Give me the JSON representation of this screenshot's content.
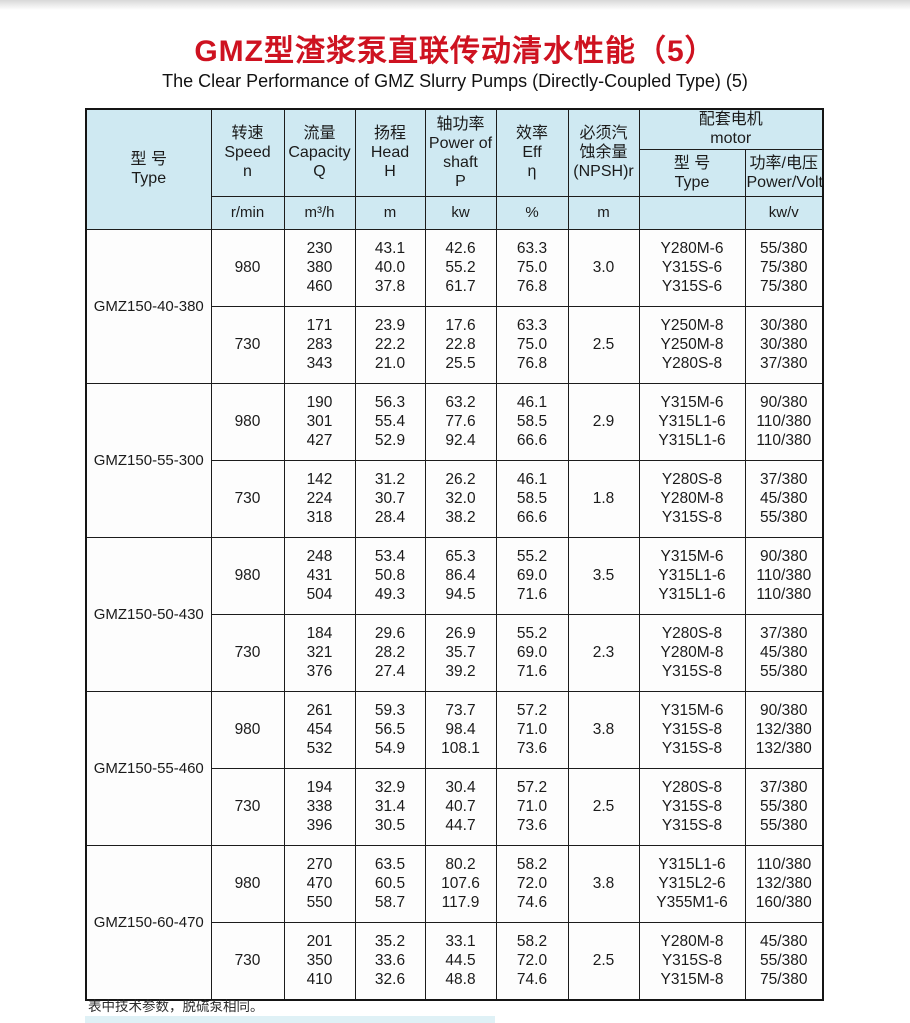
{
  "page": {
    "title": "GMZ型渣浆泵直联传动清水性能（5）",
    "subtitle": "The Clear Performance of GMZ Slurry Pumps (Directly-Coupled Type) (5)",
    "note": "表中技术参数，脱硫泵相同。",
    "colors": {
      "title_red": "#ce1220",
      "header_bg": "#cfe9f2",
      "border": "#1c1c1c"
    }
  },
  "table": {
    "headers": {
      "model": {
        "zh": "型  号",
        "en": "Type"
      },
      "speed": {
        "zh": "转速",
        "en": "Speed",
        "sym": "n"
      },
      "capacity": {
        "zh": "流量",
        "en": "Capacity",
        "sym": "Q"
      },
      "head": {
        "zh": "扬程",
        "en": "Head",
        "sym": "H"
      },
      "shaft_power": {
        "zh": "轴功率",
        "en": "Power of\nshaft",
        "sym": "P"
      },
      "eff": {
        "zh": "效率",
        "en": "Eff",
        "sym": "η"
      },
      "npsh": {
        "zh1": "必须汽",
        "zh2": "蚀余量",
        "sym": "(NPSH)r"
      },
      "motor_group": {
        "zh": "配套电机",
        "en": "motor"
      },
      "motor_model": {
        "zh": "型  号",
        "en": "Type"
      },
      "motor_power": {
        "zh": "功率/电压",
        "en": "Power/Voltage"
      }
    },
    "units": {
      "speed": "r/min",
      "capacity": "m³/h",
      "head": "m",
      "shaft_power": "kw",
      "eff": "%",
      "npsh": "m",
      "motor_model": "",
      "motor_power": "kw/v"
    },
    "models": [
      {
        "name": "GMZ150-40-380",
        "speeds": [
          {
            "rpm": "980",
            "capacity": [
              "230",
              "380",
              "460"
            ],
            "head": [
              "43.1",
              "40.0",
              "37.8"
            ],
            "shaft_power": [
              "42.6",
              "55.2",
              "61.7"
            ],
            "eff": [
              "63.3",
              "75.0",
              "76.8"
            ],
            "npsh": "3.0",
            "motors": [
              "Y280M-6",
              "Y315S-6",
              "Y315S-6"
            ],
            "power_voltage": [
              "55/380",
              "75/380",
              "75/380"
            ]
          },
          {
            "rpm": "730",
            "capacity": [
              "171",
              "283",
              "343"
            ],
            "head": [
              "23.9",
              "22.2",
              "21.0"
            ],
            "shaft_power": [
              "17.6",
              "22.8",
              "25.5"
            ],
            "eff": [
              "63.3",
              "75.0",
              "76.8"
            ],
            "npsh": "2.5",
            "motors": [
              "Y250M-8",
              "Y250M-8",
              "Y280S-8"
            ],
            "power_voltage": [
              "30/380",
              "30/380",
              "37/380"
            ]
          }
        ]
      },
      {
        "name": "GMZ150-55-300",
        "speeds": [
          {
            "rpm": "980",
            "capacity": [
              "190",
              "301",
              "427"
            ],
            "head": [
              "56.3",
              "55.4",
              "52.9"
            ],
            "shaft_power": [
              "63.2",
              "77.6",
              "92.4"
            ],
            "eff": [
              "46.1",
              "58.5",
              "66.6"
            ],
            "npsh": "2.9",
            "motors": [
              "Y315M-6",
              "Y315L1-6",
              "Y315L1-6"
            ],
            "power_voltage": [
              "90/380",
              "110/380",
              "110/380"
            ]
          },
          {
            "rpm": "730",
            "capacity": [
              "142",
              "224",
              "318"
            ],
            "head": [
              "31.2",
              "30.7",
              "28.4"
            ],
            "shaft_power": [
              "26.2",
              "32.0",
              "38.2"
            ],
            "eff": [
              "46.1",
              "58.5",
              "66.6"
            ],
            "npsh": "1.8",
            "motors": [
              "Y280S-8",
              "Y280M-8",
              "Y315S-8"
            ],
            "power_voltage": [
              "37/380",
              "45/380",
              "55/380"
            ]
          }
        ]
      },
      {
        "name": "GMZ150-50-430",
        "speeds": [
          {
            "rpm": "980",
            "capacity": [
              "248",
              "431",
              "504"
            ],
            "head": [
              "53.4",
              "50.8",
              "49.3"
            ],
            "shaft_power": [
              "65.3",
              "86.4",
              "94.5"
            ],
            "eff": [
              "55.2",
              "69.0",
              "71.6"
            ],
            "npsh": "3.5",
            "motors": [
              "Y315M-6",
              "Y315L1-6",
              "Y315L1-6"
            ],
            "power_voltage": [
              "90/380",
              "110/380",
              "110/380"
            ]
          },
          {
            "rpm": "730",
            "capacity": [
              "184",
              "321",
              "376"
            ],
            "head": [
              "29.6",
              "28.2",
              "27.4"
            ],
            "shaft_power": [
              "26.9",
              "35.7",
              "39.2"
            ],
            "eff": [
              "55.2",
              "69.0",
              "71.6"
            ],
            "npsh": "2.3",
            "motors": [
              "Y280S-8",
              "Y280M-8",
              "Y315S-8"
            ],
            "power_voltage": [
              "37/380",
              "45/380",
              "55/380"
            ]
          }
        ]
      },
      {
        "name": "GMZ150-55-460",
        "speeds": [
          {
            "rpm": "980",
            "capacity": [
              "261",
              "454",
              "532"
            ],
            "head": [
              "59.3",
              "56.5",
              "54.9"
            ],
            "shaft_power": [
              "73.7",
              "98.4",
              "108.1"
            ],
            "eff": [
              "57.2",
              "71.0",
              "73.6"
            ],
            "npsh": "3.8",
            "motors": [
              "Y315M-6",
              "Y315S-8",
              "Y315S-8"
            ],
            "power_voltage": [
              "90/380",
              "132/380",
              "132/380"
            ]
          },
          {
            "rpm": "730",
            "capacity": [
              "194",
              "338",
              "396"
            ],
            "head": [
              "32.9",
              "31.4",
              "30.5"
            ],
            "shaft_power": [
              "30.4",
              "40.7",
              "44.7"
            ],
            "eff": [
              "57.2",
              "71.0",
              "73.6"
            ],
            "npsh": "2.5",
            "motors": [
              "Y280S-8",
              "Y315S-8",
              "Y315S-8"
            ],
            "power_voltage": [
              "37/380",
              "55/380",
              "55/380"
            ]
          }
        ]
      },
      {
        "name": "GMZ150-60-470",
        "speeds": [
          {
            "rpm": "980",
            "capacity": [
              "270",
              "470",
              "550"
            ],
            "head": [
              "63.5",
              "60.5",
              "58.7"
            ],
            "shaft_power": [
              "80.2",
              "107.6",
              "117.9"
            ],
            "eff": [
              "58.2",
              "72.0",
              "74.6"
            ],
            "npsh": "3.8",
            "motors": [
              "Y315L1-6",
              "Y315L2-6",
              "Y355M1-6"
            ],
            "power_voltage": [
              "110/380",
              "132/380",
              "160/380"
            ]
          },
          {
            "rpm": "730",
            "capacity": [
              "201",
              "350",
              "410"
            ],
            "head": [
              "35.2",
              "33.6",
              "32.6"
            ],
            "shaft_power": [
              "33.1",
              "44.5",
              "48.8"
            ],
            "eff": [
              "58.2",
              "72.0",
              "74.6"
            ],
            "npsh": "2.5",
            "motors": [
              "Y280M-8",
              "Y315S-8",
              "Y315M-8"
            ],
            "power_voltage": [
              "45/380",
              "55/380",
              "75/380"
            ]
          }
        ]
      }
    ]
  }
}
